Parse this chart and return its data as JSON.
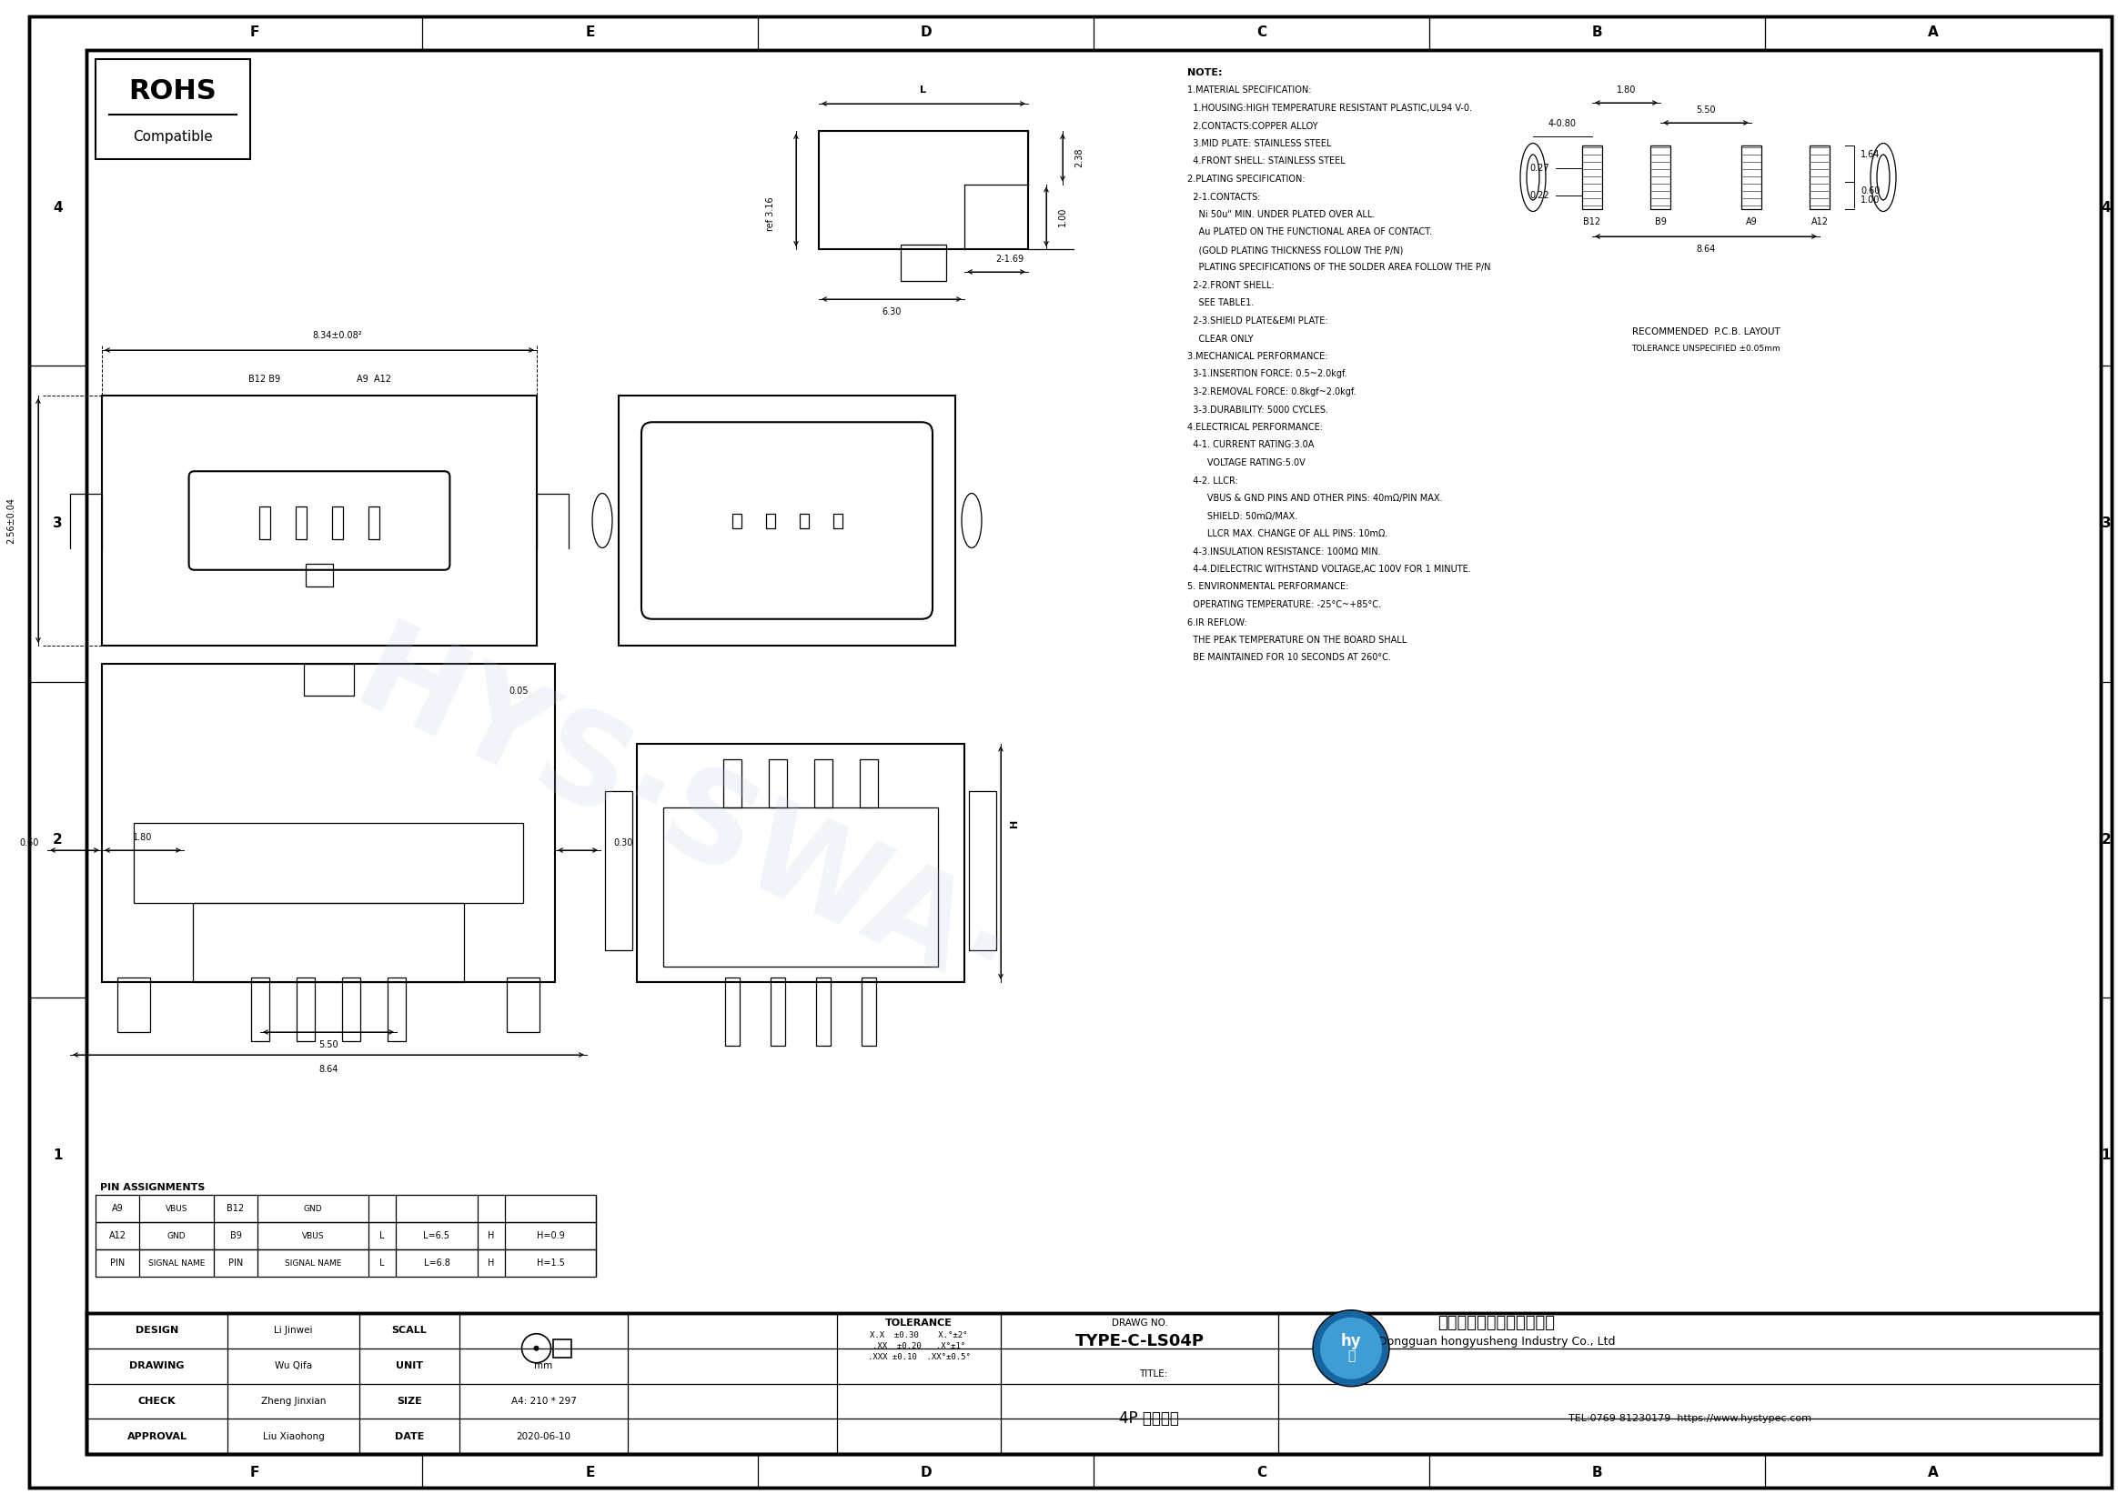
{
  "bg_color": "#ffffff",
  "line_color": "#000000",
  "grid_letters": [
    "F",
    "E",
    "D",
    "C",
    "B",
    "A"
  ],
  "grid_numbers": [
    "1",
    "2",
    "3",
    "4"
  ],
  "notes": [
    "NOTE:",
    "1.MATERIAL SPECIFICATION:",
    "  1.HOUSING:HIGH TEMPERATURE RESISTANT PLASTIC,UL94 V-0.",
    "  2.CONTACTS:COPPER ALLOY",
    "  3.MID PLATE: STAINLESS STEEL",
    "  4.FRONT SHELL: STAINLESS STEEL",
    "2.PLATING SPECIFICATION:",
    "  2-1.CONTACTS:",
    "    Ni 50u\" MIN. UNDER PLATED OVER ALL.",
    "    Au PLATED ON THE FUNCTIONAL AREA OF CONTACT.",
    "    (GOLD PLATING THICKNESS FOLLOW THE P/N)",
    "    PLATING SPECIFICATIONS OF THE SOLDER AREA FOLLOW THE P/N",
    "  2-2.FRONT SHELL:",
    "    SEE TABLE1.",
    "  2-3.SHIELD PLATE&EMI PLATE:",
    "    CLEAR ONLY",
    "3.MECHANICAL PERFORMANCE:",
    "  3-1.INSERTION FORCE: 0.5~2.0kgf.",
    "  3-2.REMOVAL FORCE: 0.8kgf~2.0kgf.",
    "  3-3.DURABILITY: 5000 CYCLES.",
    "4.ELECTRICAL PERFORMANCE:",
    "  4-1. CURRENT RATING:3.0A",
    "       VOLTAGE RATING:5.0V",
    "  4-2. LLCR:",
    "       VBUS & GND PINS AND OTHER PINS: 40mΩ/PIN MAX.",
    "       SHIELD: 50mΩ/MAX.",
    "       LLCR MAX. CHANGE OF ALL PINS: 10mΩ.",
    "  4-3.INSULATION RESISTANCE: 100MΩ MIN.",
    "  4-4.DIELECTRIC WITHSTAND VOLTAGE,AC 100V FOR 1 MINUTE.",
    "5. ENVIRONMENTAL PERFORMANCE:",
    "  OPERATING TEMPERATURE: -25°C~+85°C.",
    "6.IR REFLOW:",
    "  THE PEAK TEMPERATURE ON THE BOARD SHALL",
    "  BE MAINTAINED FOR 10 SECONDS AT 260°C."
  ],
  "title_block": {
    "design": "Li Jinwei",
    "drawing": "Wu Qifa",
    "check": "Zheng Jinxian",
    "approval": "Liu Xiaohong",
    "unit": "mm",
    "size": "A4: 210 * 297",
    "date": "2020-06-10",
    "tolerance_lines": [
      "X.X  ±0.30    X.°±2°",
      ".XX  ±0.20   .X°±1°",
      ".XXX ±0.10  .XX°±0.5°"
    ],
    "drawg_no": "TYPE-C-LS04P",
    "title_value": "4P 立式贴片",
    "company_cn": "东莞市宏焉盛实业有限公司",
    "company_en": "Dongguan hongyusheng Industry Co., Ltd",
    "tel": "TEL:0769-81230179  https://www.hystypec.com"
  }
}
